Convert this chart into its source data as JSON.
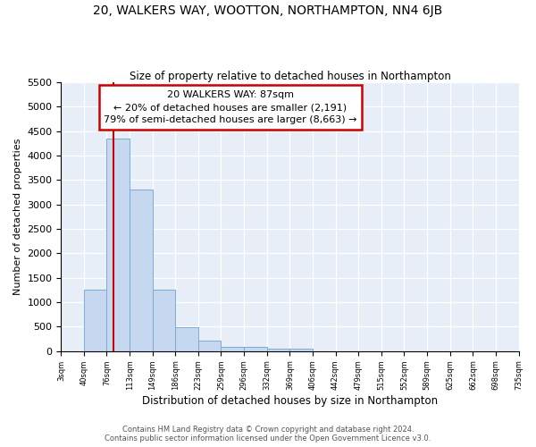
{
  "title1": "20, WALKERS WAY, WOOTTON, NORTHAMPTON, NN4 6JB",
  "title2": "Size of property relative to detached houses in Northampton",
  "xlabel": "Distribution of detached houses by size in Northampton",
  "ylabel": "Number of detached properties",
  "footer1": "Contains HM Land Registry data © Crown copyright and database right 2024.",
  "footer2": "Contains public sector information licensed under the Open Government Licence v3.0.",
  "annotation_title": "20 WALKERS WAY: 87sqm",
  "annotation_line1": "← 20% of detached houses are smaller (2,191)",
  "annotation_line2": "79% of semi-detached houses are larger (8,663) →",
  "property_size": 87,
  "bar_edges": [
    3,
    40,
    76,
    113,
    149,
    186,
    223,
    259,
    296,
    332,
    369,
    406,
    442,
    479,
    515,
    552,
    589,
    625,
    662,
    698,
    735
  ],
  "bar_heights": [
    0,
    1260,
    4350,
    3300,
    1260,
    490,
    220,
    90,
    80,
    55,
    55,
    0,
    0,
    0,
    0,
    0,
    0,
    0,
    0,
    0
  ],
  "bar_color": "#c5d8f0",
  "bar_edge_color": "#7aadd4",
  "vline_color": "#cc0000",
  "vline_x": 87,
  "annotation_box_color": "#cc0000",
  "background_color": "#e8eef8",
  "ylim": [
    0,
    5500
  ],
  "yticks": [
    0,
    500,
    1000,
    1500,
    2000,
    2500,
    3000,
    3500,
    4000,
    4500,
    5000,
    5500
  ]
}
